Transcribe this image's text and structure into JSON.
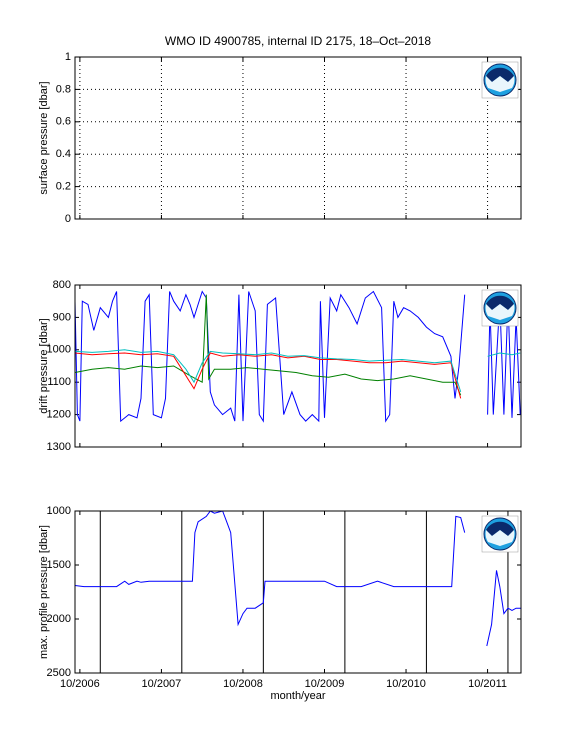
{
  "chart_data": [
    {
      "type": "line",
      "title": "WMO ID 4900785, internal ID 2175, 18–Oct–2018",
      "ylabel": "surface pressure [dbar]",
      "xlim": [
        2006.69,
        2012.16
      ],
      "xticks": [
        2006.75,
        2007.75,
        2008.75,
        2009.75,
        2010.75,
        2011.75
      ],
      "ylim": [
        0,
        1
      ],
      "yticks": [
        0,
        0.2,
        0.4,
        0.6,
        0.8,
        1
      ],
      "yreverse": false,
      "grid": true,
      "series": []
    },
    {
      "type": "line",
      "ylabel": "drift pressure [dbar]",
      "xlim": [
        2006.69,
        2012.16
      ],
      "xticks": [
        2006.75,
        2007.75,
        2008.75,
        2009.75,
        2010.75,
        2011.75
      ],
      "ylim": [
        800,
        1300
      ],
      "yticks": [
        800,
        900,
        1000,
        1100,
        1200,
        1300
      ],
      "yreverse": true,
      "grid": false,
      "series": [
        {
          "color": "#0000ff",
          "x": [
            2006.69,
            2006.72,
            2006.75,
            2006.78,
            2006.85,
            2006.92,
            2007.0,
            2007.1,
            2007.15,
            2007.2,
            2007.25,
            2007.35,
            2007.45,
            2007.5,
            2007.55,
            2007.6,
            2007.65,
            2007.75,
            2007.8,
            2007.85,
            2007.9,
            2007.98,
            2008.05,
            2008.1,
            2008.15,
            2008.2,
            2008.25,
            2008.3,
            2008.35,
            2008.4,
            2008.5,
            2008.6,
            2008.65,
            2008.7,
            2008.75,
            2008.82,
            2008.9,
            2008.95,
            2009.0,
            2009.05,
            2009.15,
            2009.25,
            2009.35,
            2009.45,
            2009.52,
            2009.6,
            2009.68,
            2009.7,
            2009.75,
            2009.82,
            2009.9,
            2009.95,
            2010.05,
            2010.15,
            2010.25,
            2010.35,
            2010.45,
            2010.5,
            2010.55,
            2010.6,
            2010.65,
            2010.72,
            2010.8,
            2010.9,
            2011.0,
            2011.1,
            2011.2,
            2011.3,
            2011.35,
            2011.4,
            2011.47,
            2011.6,
            2011.75,
            2011.78,
            2011.82,
            2011.9,
            2011.95,
            2012.0,
            2012.05,
            2012.1,
            2012.15
          ],
          "values": [
            850,
            1200,
            1220,
            850,
            860,
            940,
            870,
            900,
            850,
            820,
            1220,
            1200,
            1210,
            1150,
            850,
            830,
            1200,
            1210,
            1150,
            820,
            850,
            880,
            830,
            860,
            900,
            860,
            820,
            840,
            1130,
            1170,
            1200,
            1180,
            1220,
            830,
            1220,
            820,
            880,
            1200,
            1220,
            860,
            840,
            1200,
            1130,
            1200,
            1220,
            1200,
            1220,
            850,
            1210,
            840,
            880,
            830,
            870,
            920,
            840,
            820,
            870,
            1220,
            1200,
            850,
            900,
            870,
            880,
            900,
            930,
            950,
            960,
            1020,
            1150,
            1050,
            830,
            null,
            1200,
            870,
            1200,
            850,
            1200,
            850,
            1210,
            900,
            1200
          ]
        },
        {
          "color": "#008000",
          "x": [
            2006.69,
            2006.9,
            2007.1,
            2007.3,
            2007.5,
            2007.7,
            2007.9,
            2008.1,
            2008.25,
            2008.3,
            2008.33,
            2008.4,
            2008.6,
            2008.8,
            2009.0,
            2009.2,
            2009.4,
            2009.6,
            2009.8,
            2010.0,
            2010.2,
            2010.4,
            2010.6,
            2010.8,
            2011.0,
            2011.2,
            2011.35,
            2011.42
          ],
          "values": [
            1070,
            1060,
            1055,
            1060,
            1050,
            1055,
            1050,
            1080,
            1100,
            830,
            1090,
            1060,
            1060,
            1055,
            1060,
            1065,
            1070,
            1080,
            1085,
            1075,
            1090,
            1095,
            1090,
            1080,
            1090,
            1100,
            1100,
            1140
          ]
        },
        {
          "color": "#ff0000",
          "x": [
            2006.69,
            2006.9,
            2007.1,
            2007.3,
            2007.5,
            2007.7,
            2007.9,
            2008.05,
            2008.15,
            2008.25,
            2008.35,
            2008.5,
            2008.7,
            2008.9,
            2009.1,
            2009.3,
            2009.5,
            2009.7,
            2009.9,
            2010.1,
            2010.3,
            2010.5,
            2010.7,
            2010.9,
            2011.1,
            2011.3,
            2011.42
          ],
          "values": [
            1010,
            1015,
            1012,
            1010,
            1015,
            1012,
            1020,
            1080,
            1120,
            1060,
            1010,
            1020,
            1015,
            1020,
            1015,
            1025,
            1020,
            1030,
            1030,
            1035,
            1040,
            1040,
            1035,
            1040,
            1045,
            1040,
            1150
          ]
        },
        {
          "color": "#00bfbf",
          "x": [
            2006.69,
            2006.9,
            2007.1,
            2007.3,
            2007.5,
            2007.7,
            2007.9,
            2008.05,
            2008.15,
            2008.25,
            2008.35,
            2008.5,
            2008.7,
            2008.9,
            2009.1,
            2009.3,
            2009.5,
            2009.7,
            2009.9,
            2010.1,
            2010.3,
            2010.5,
            2010.7,
            2010.9,
            2011.1,
            2011.3,
            2011.42,
            2011.6,
            2011.75,
            2011.9,
            2012.05,
            2012.15
          ],
          "values": [
            1005,
            1008,
            1005,
            1000,
            1008,
            1005,
            1015,
            1060,
            1100,
            1040,
            1005,
            1010,
            1012,
            1015,
            1010,
            1020,
            1018,
            1025,
            1028,
            1030,
            1035,
            1032,
            1030,
            1035,
            1040,
            1035,
            1130,
            null,
            1020,
            1010,
            1015,
            1010
          ]
        }
      ]
    },
    {
      "type": "line",
      "ylabel": "max. profile pressure [dbar]",
      "xlabel": "month/year",
      "xlim": [
        2006.69,
        2012.16
      ],
      "xticks": [
        {
          "value": 2006.75,
          "label": "10/2006"
        },
        {
          "value": 2007.75,
          "label": "10/2007"
        },
        {
          "value": 2008.75,
          "label": "10/2008"
        },
        {
          "value": 2009.75,
          "label": "10/2009"
        },
        {
          "value": 2010.75,
          "label": "10/2010"
        },
        {
          "value": 2011.75,
          "label": "10/2011"
        }
      ],
      "vlines": [
        2007.0,
        2008.0,
        2009.0,
        2010.0,
        2011.0,
        2012.0
      ],
      "ylim": [
        1000,
        2500
      ],
      "yticks": [
        1000,
        1500,
        2000,
        2500
      ],
      "yreverse": true,
      "grid": false,
      "series": [
        {
          "color": "#0000ff",
          "x": [
            2006.69,
            2006.8,
            2007.0,
            2007.2,
            2007.3,
            2007.35,
            2007.45,
            2007.5,
            2007.6,
            2007.8,
            2008.0,
            2008.13,
            2008.16,
            2008.2,
            2008.3,
            2008.35,
            2008.4,
            2008.5,
            2008.55,
            2008.6,
            2008.69,
            2008.75,
            2008.8,
            2008.9,
            2009.0,
            2009.02,
            2009.3,
            2009.6,
            2009.75,
            2009.9,
            2010.2,
            2010.4,
            2010.6,
            2011.0,
            2011.31,
            2011.36,
            2011.42,
            2011.47,
            2011.6,
            2011.74,
            2011.8,
            2011.86,
            2011.9,
            2011.95,
            2012.0,
            2012.05,
            2012.1,
            2012.16
          ],
          "values": [
            1690,
            1700,
            1700,
            1700,
            1650,
            1680,
            1650,
            1660,
            1650,
            1650,
            1650,
            1650,
            1200,
            1100,
            1050,
            1000,
            1020,
            1000,
            1100,
            1200,
            2050,
            1950,
            1900,
            1900,
            1850,
            1650,
            1650,
            1650,
            1650,
            1700,
            1700,
            1650,
            1700,
            1700,
            1700,
            1050,
            1060,
            1200,
            null,
            2250,
            2050,
            1550,
            1700,
            1950,
            1900,
            1920,
            1900,
            1900
          ]
        }
      ]
    }
  ]
}
